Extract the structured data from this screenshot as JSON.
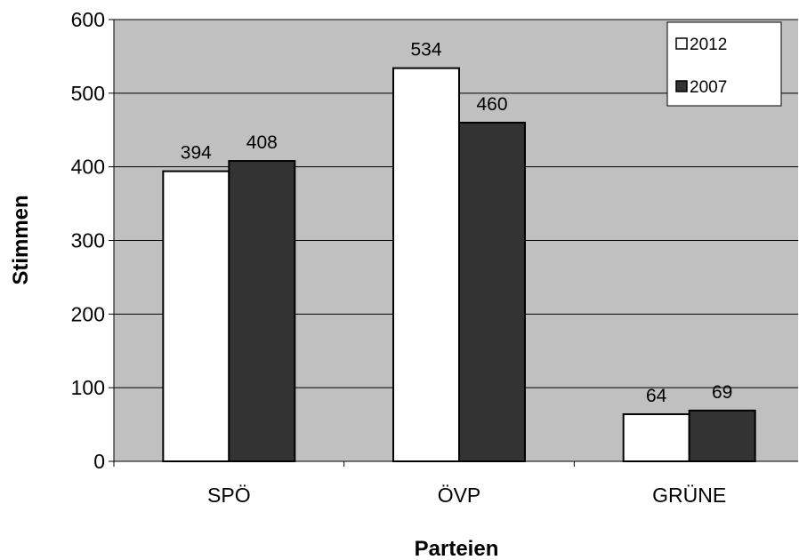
{
  "chart_data": {
    "type": "bar",
    "title": "",
    "xlabel": "Parteien",
    "ylabel": "Stimmen",
    "categories": [
      "SPÖ",
      "ÖVP",
      "GRÜNE"
    ],
    "series": [
      {
        "name": "2012",
        "values": [
          394,
          534,
          64
        ],
        "color": "#ffffff"
      },
      {
        "name": "2007",
        "values": [
          408,
          460,
          69
        ],
        "color": "#333333"
      }
    ],
    "ylim": [
      0,
      600
    ],
    "yticks": [
      0,
      100,
      200,
      300,
      400,
      500,
      600
    ],
    "grid": true,
    "legend": "top-right",
    "plot_background": "#c0c0c0",
    "bar_stroke": "#000000"
  }
}
